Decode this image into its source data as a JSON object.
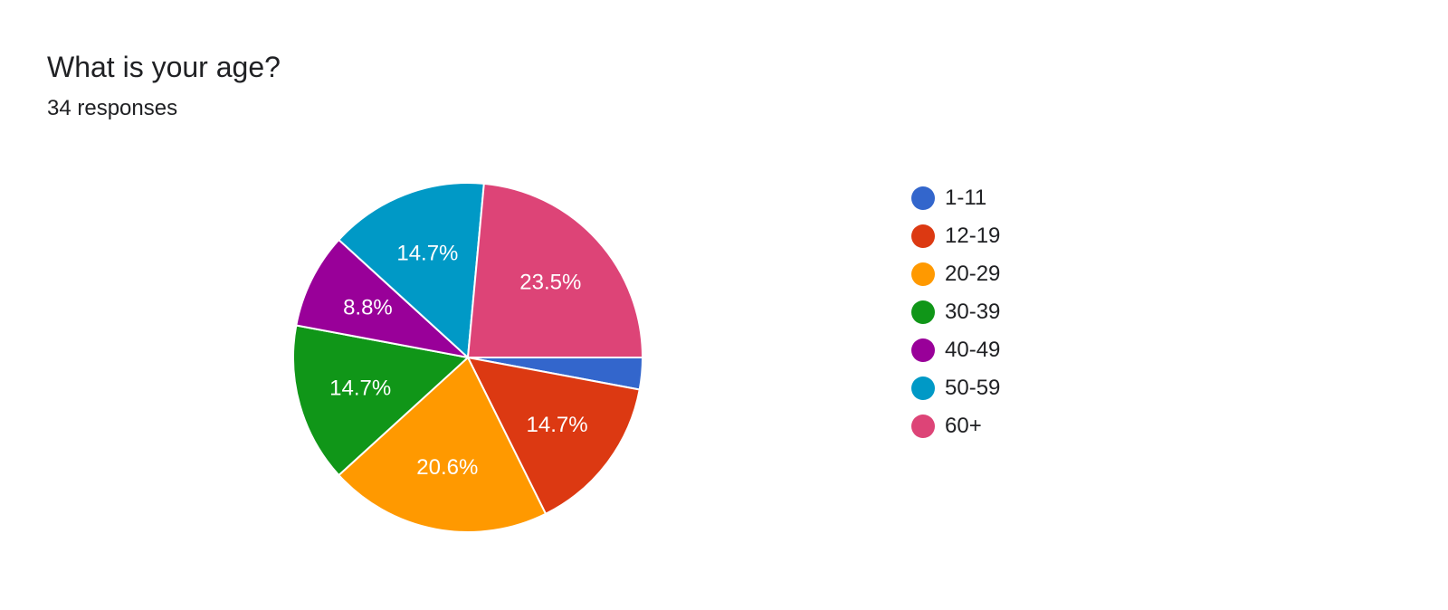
{
  "question": {
    "title": "What is your age?",
    "responses_label": "34 responses"
  },
  "chart_data": {
    "type": "pie",
    "title": "What is your age?",
    "subtitle": "34 responses",
    "total": 34,
    "legend_position": "right",
    "start_angle_deg": 90,
    "direction": "clockwise",
    "categories": [
      "1-11",
      "12-19",
      "20-29",
      "30-39",
      "40-49",
      "50-59",
      "60+"
    ],
    "values": [
      1,
      5,
      7,
      5,
      3,
      5,
      8
    ],
    "percent_labels": [
      "",
      "14.7%",
      "20.6%",
      "14.7%",
      "8.8%",
      "14.7%",
      "23.5%"
    ],
    "colors": [
      "#3366cc",
      "#dc3912",
      "#ff9900",
      "#109618",
      "#990099",
      "#0099c6",
      "#dd4477"
    ]
  }
}
